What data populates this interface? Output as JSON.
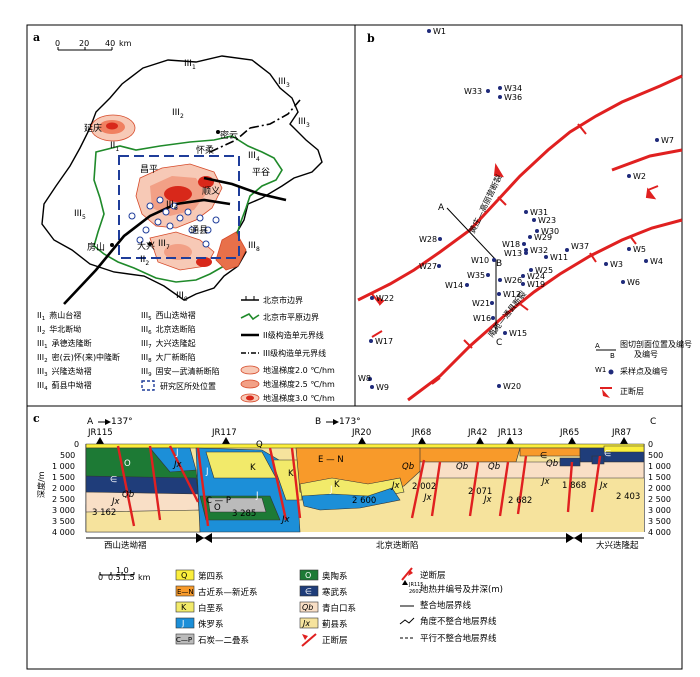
{
  "panel_a": {
    "label": "a",
    "scale": {
      "ticks": [
        "0",
        "20",
        "40"
      ],
      "unit": "km"
    },
    "regions": [
      {
        "id": "III1",
        "main": "III",
        "sub": "1"
      },
      {
        "id": "III2",
        "main": "III",
        "sub": "2"
      },
      {
        "id": "III3",
        "main": "III",
        "sub": "3"
      },
      {
        "id": "III3b",
        "main": "III",
        "sub": "3"
      },
      {
        "id": "III4",
        "main": "III",
        "sub": "4"
      },
      {
        "id": "III5",
        "main": "III",
        "sub": "5"
      },
      {
        "id": "III6",
        "main": "III",
        "sub": "6"
      },
      {
        "id": "III7",
        "main": "III",
        "sub": "7"
      },
      {
        "id": "III8",
        "main": "III",
        "sub": "8"
      },
      {
        "id": "III9",
        "main": "III",
        "sub": "9"
      },
      {
        "id": "II1",
        "main": "II",
        "sub": "1"
      },
      {
        "id": "II2",
        "main": "II",
        "sub": "2"
      }
    ],
    "places": [
      "延庆",
      "密云",
      "怀柔",
      "平谷",
      "昌平",
      "顺义",
      "房山",
      "大兴",
      "通县"
    ],
    "legend_left": [
      {
        "main": "II",
        "sub": "1",
        "text": "燕山台褶"
      },
      {
        "main": "II",
        "sub": "2",
        "text": "华北断坳"
      },
      {
        "main": "III",
        "sub": "1",
        "text": "承德迭隆断"
      },
      {
        "main": "III",
        "sub": "2",
        "text": "密(云)怀(来)中隆断"
      },
      {
        "main": "III",
        "sub": "3",
        "text": "兴隆迭坳褶"
      },
      {
        "main": "III",
        "sub": "4",
        "text": "蓟县中坳褶"
      }
    ],
    "legend_mid": [
      {
        "main": "III",
        "sub": "5",
        "text": "西山迭坳褶"
      },
      {
        "main": "III",
        "sub": "6",
        "text": "北京迭断陷"
      },
      {
        "main": "III",
        "sub": "7",
        "text": "大兴迭隆起"
      },
      {
        "main": "III",
        "sub": "8",
        "text": "大厂新断陷"
      },
      {
        "main": "III",
        "sub": "9",
        "text": "固安—武清新断陷"
      }
    ],
    "legend_mid_last": "研究区所处位置",
    "legend_right": [
      "北京市边界",
      "北京市平原边界",
      "II级构造单元界线",
      "III级构造单元界线",
      "地温梯度2.0 ℃/hm",
      "地温梯度2.5 ℃/hm",
      "地温梯度3.0 ℃/hm"
    ]
  },
  "panel_b": {
    "label": "b",
    "wells": [
      "W1",
      "W2",
      "W3",
      "W4",
      "W5",
      "W6",
      "W7",
      "W8",
      "W9",
      "W10",
      "W11",
      "W12",
      "W13",
      "W14",
      "W15",
      "W16",
      "W17",
      "W18",
      "W19",
      "W20",
      "W21",
      "W22",
      "W23",
      "W24",
      "W25",
      "W26",
      "W27",
      "W28",
      "W29",
      "W30",
      "W31",
      "W32",
      "W33",
      "W34",
      "W35",
      "W36",
      "W37"
    ],
    "faults": [
      "黄庄—高丽营断裂",
      "南苑—通县断裂"
    ],
    "section_ends": [
      "A",
      "B",
      "C"
    ],
    "legend": [
      "图切剖面位置及编号",
      "采样点及编号",
      "正断层"
    ],
    "legend_section_letters": [
      "A",
      "B"
    ],
    "legend_sample_letter": "W1"
  },
  "panel_c": {
    "label": "c",
    "ends": [
      {
        "letter": "A",
        "az": "137°"
      },
      {
        "letter": "B",
        "az": "173°"
      },
      {
        "letter": "C",
        "az": ""
      }
    ],
    "wells": [
      {
        "name": "JR115",
        "depth": "3 162"
      },
      {
        "name": "JR117",
        "depth": "3 285"
      },
      {
        "name": "JR20",
        "depth": "2 600"
      },
      {
        "name": "JR68",
        "depth": "2 002"
      },
      {
        "name": "JR42",
        "depth": "2 071"
      },
      {
        "name": "JR113",
        "depth": "2 682"
      },
      {
        "name": "JR65",
        "depth": "1 868"
      },
      {
        "name": "JR87",
        "depth": "2 403"
      }
    ],
    "y_axis_label": "深度/m",
    "y_ticks": [
      "0",
      "500",
      "1 000",
      "1 500",
      "2 000",
      "2 500",
      "3 000",
      "3 500",
      "4 000"
    ],
    "units": [
      {
        "code": "Q",
        "text": "第四系",
        "color": "#fbee3c"
      },
      {
        "code": "E—N",
        "text": "古近系—新近系",
        "color": "#f89a2a"
      },
      {
        "code": "K",
        "text": "白垩系",
        "color": "#f2ea6a"
      },
      {
        "code": "J",
        "text": "侏罗系",
        "color": "#1c8fd8"
      },
      {
        "code": "C—P",
        "text": "石炭—二叠系",
        "color": "#bbbbbb"
      },
      {
        "code": "O",
        "text": "奥陶系",
        "color": "#1d7a35"
      },
      {
        "code": "∈",
        "text": "寒武系",
        "color": "#1f3d7a"
      },
      {
        "code": "Qb",
        "text": "青白口系",
        "color": "#f9dfc6"
      },
      {
        "code": "Jx",
        "text": "蓟县系",
        "color": "#f6e39d"
      }
    ],
    "lines_legend": [
      "逆断层",
      "地热井编号及井深(m)",
      "整合地层界线",
      "角度不整合地层界线",
      "平行不整合地层界线",
      "正断层"
    ],
    "well_legend_sample": {
      "name": "JR115",
      "depth": "2602"
    },
    "scale": {
      "ticks": [
        "0",
        "0.5",
        "1.0",
        "1.5"
      ],
      "unit": "km"
    },
    "zones": [
      "西山迭坳褶",
      "北京迭断陷",
      "大兴迭隆起"
    ]
  }
}
